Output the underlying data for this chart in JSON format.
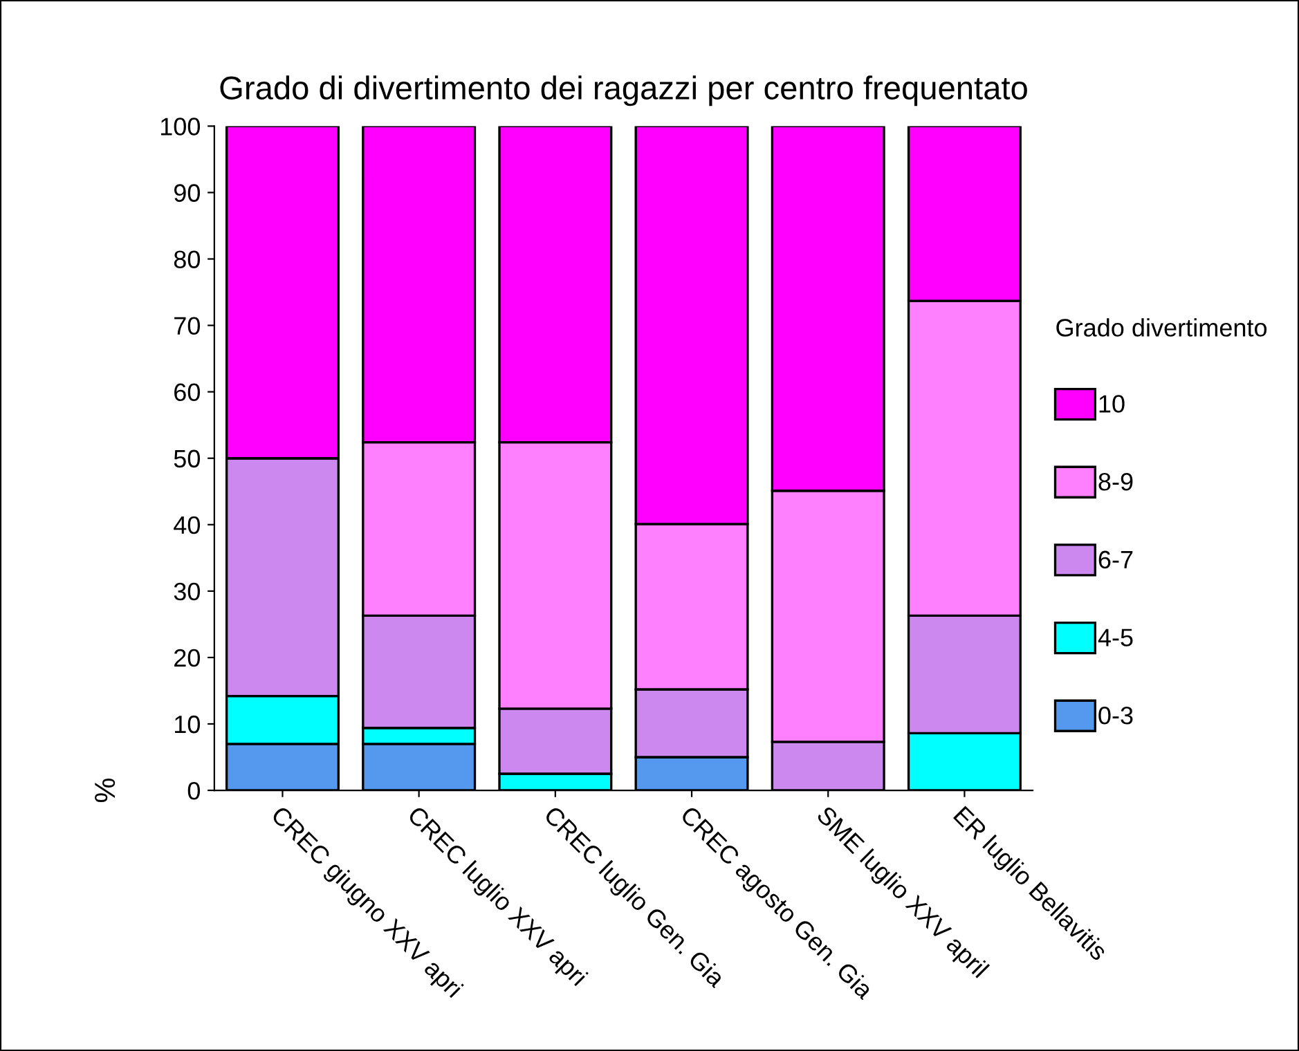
{
  "chart_data": {
    "type": "bar",
    "stacked": true,
    "title": "Grado di divertimento dei ragazzi per centro frequentato",
    "ylabel": "%",
    "legend_title": "Grado divertimento",
    "legend": "right",
    "grid": false,
    "categories": [
      "CREC giugno XXV apri",
      "CREC luglio XXV apri",
      "CREC luglio Gen. Gia",
      "CREC agosto Gen. Gia",
      "SME luglio XXV april",
      "ER luglio Bellavitis"
    ],
    "ylim": [
      0,
      100
    ],
    "yticks": [
      0,
      10,
      20,
      30,
      40,
      50,
      60,
      70,
      80,
      90,
      100
    ],
    "series": [
      {
        "name": "0-3",
        "color": "#5599ee",
        "values": [
          7,
          7,
          0,
          5,
          0,
          0
        ]
      },
      {
        "name": "4-5",
        "color": "#00ffff",
        "values": [
          7.2,
          2.4,
          2.5,
          0,
          0,
          8.6
        ]
      },
      {
        "name": "6-7",
        "color": "#cc88ee",
        "values": [
          35.8,
          16.9,
          9.8,
          10.2,
          7.3,
          17.7
        ]
      },
      {
        "name": "8-9",
        "color": "#ff80ff",
        "values": [
          0,
          26.1,
          40.1,
          24.9,
          37.8,
          47.4
        ]
      },
      {
        "name": "10",
        "color": "#ff00ff",
        "values": [
          50,
          47.6,
          47.6,
          59.9,
          54.9,
          26.3
        ]
      }
    ]
  }
}
